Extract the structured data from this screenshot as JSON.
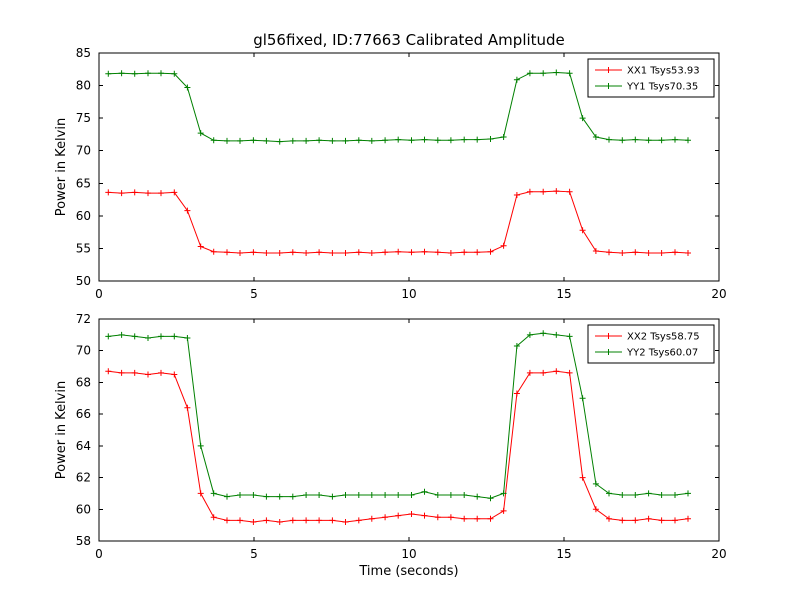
{
  "figure": {
    "title": "gl56fixed, ID:77663 Calibrated Amplitude",
    "background": "#ffffff"
  },
  "chart_data": [
    {
      "type": "line",
      "title": "gl56fixed, ID:77663 Calibrated Amplitude",
      "xlabel": "",
      "ylabel": "Power in Kelvin",
      "xlim": [
        0,
        20
      ],
      "ylim": [
        50,
        85
      ],
      "xticks": [
        0,
        5,
        10,
        15,
        20
      ],
      "yticks": [
        50,
        55,
        60,
        65,
        70,
        75,
        80,
        85
      ],
      "grid": false,
      "marker": "+",
      "legend_position": "upper right",
      "x": [
        0.3,
        0.73,
        1.15,
        1.58,
        2.0,
        2.43,
        2.85,
        3.28,
        3.7,
        4.13,
        4.55,
        4.98,
        5.4,
        5.83,
        6.25,
        6.68,
        7.1,
        7.53,
        7.95,
        8.38,
        8.8,
        9.23,
        9.65,
        10.08,
        10.5,
        10.93,
        11.35,
        11.78,
        12.2,
        12.63,
        13.05,
        13.48,
        13.9,
        14.33,
        14.75,
        15.18,
        15.6,
        16.03,
        16.45,
        16.88,
        17.3,
        17.73,
        18.15,
        18.58,
        19.0
      ],
      "series": [
        {
          "name": "XX1 Tsys53.93",
          "color": "#ff0000",
          "values": [
            63.6,
            63.5,
            63.6,
            63.5,
            63.5,
            63.6,
            60.8,
            55.3,
            54.5,
            54.4,
            54.3,
            54.4,
            54.3,
            54.3,
            54.4,
            54.3,
            54.4,
            54.3,
            54.3,
            54.4,
            54.3,
            54.4,
            54.5,
            54.4,
            54.5,
            54.4,
            54.3,
            54.4,
            54.4,
            54.5,
            55.4,
            63.2,
            63.7,
            63.7,
            63.8,
            63.7,
            57.8,
            54.6,
            54.4,
            54.3,
            54.4,
            54.3,
            54.3,
            54.4,
            54.3
          ]
        },
        {
          "name": "YY1 Tsys70.35",
          "color": "#008000",
          "values": [
            81.8,
            81.9,
            81.8,
            81.9,
            81.9,
            81.8,
            79.7,
            72.7,
            71.6,
            71.5,
            71.5,
            71.6,
            71.5,
            71.4,
            71.5,
            71.5,
            71.6,
            71.5,
            71.5,
            71.6,
            71.5,
            71.6,
            71.7,
            71.6,
            71.7,
            71.6,
            71.6,
            71.7,
            71.7,
            71.8,
            72.1,
            80.9,
            81.9,
            81.9,
            82.0,
            81.9,
            75.0,
            72.1,
            71.7,
            71.6,
            71.7,
            71.6,
            71.6,
            71.7,
            71.6
          ]
        }
      ]
    },
    {
      "type": "line",
      "title": "",
      "xlabel": "Time (seconds)",
      "ylabel": "Power in Kelvin",
      "xlim": [
        0,
        20
      ],
      "ylim": [
        58,
        72
      ],
      "xticks": [
        0,
        5,
        10,
        15,
        20
      ],
      "yticks": [
        58,
        60,
        62,
        64,
        66,
        68,
        70,
        72
      ],
      "grid": false,
      "marker": "+",
      "legend_position": "upper right",
      "x": [
        0.3,
        0.73,
        1.15,
        1.58,
        2.0,
        2.43,
        2.85,
        3.28,
        3.7,
        4.13,
        4.55,
        4.98,
        5.4,
        5.83,
        6.25,
        6.68,
        7.1,
        7.53,
        7.95,
        8.38,
        8.8,
        9.23,
        9.65,
        10.08,
        10.5,
        10.93,
        11.35,
        11.78,
        12.2,
        12.63,
        13.05,
        13.48,
        13.9,
        14.33,
        14.75,
        15.18,
        15.6,
        16.03,
        16.45,
        16.88,
        17.3,
        17.73,
        18.15,
        18.58,
        19.0
      ],
      "series": [
        {
          "name": "XX2 Tsys58.75",
          "color": "#ff0000",
          "values": [
            68.7,
            68.6,
            68.6,
            68.5,
            68.6,
            68.5,
            66.4,
            61.0,
            59.5,
            59.3,
            59.3,
            59.2,
            59.3,
            59.2,
            59.3,
            59.3,
            59.3,
            59.3,
            59.2,
            59.3,
            59.4,
            59.5,
            59.6,
            59.7,
            59.6,
            59.5,
            59.5,
            59.4,
            59.4,
            59.4,
            59.9,
            67.3,
            68.6,
            68.6,
            68.7,
            68.6,
            62.0,
            60.0,
            59.4,
            59.3,
            59.3,
            59.4,
            59.3,
            59.3,
            59.4
          ]
        },
        {
          "name": "YY2 Tsys60.07",
          "color": "#008000",
          "values": [
            70.9,
            71.0,
            70.9,
            70.8,
            70.9,
            70.9,
            70.8,
            64.0,
            61.0,
            60.8,
            60.9,
            60.9,
            60.8,
            60.8,
            60.8,
            60.9,
            60.9,
            60.8,
            60.9,
            60.9,
            60.9,
            60.9,
            60.9,
            60.9,
            61.1,
            60.9,
            60.9,
            60.9,
            60.8,
            60.7,
            61.0,
            70.3,
            71.0,
            71.1,
            71.0,
            70.9,
            67.0,
            61.6,
            61.0,
            60.9,
            60.9,
            61.0,
            60.9,
            60.9,
            61.0
          ]
        }
      ]
    }
  ]
}
